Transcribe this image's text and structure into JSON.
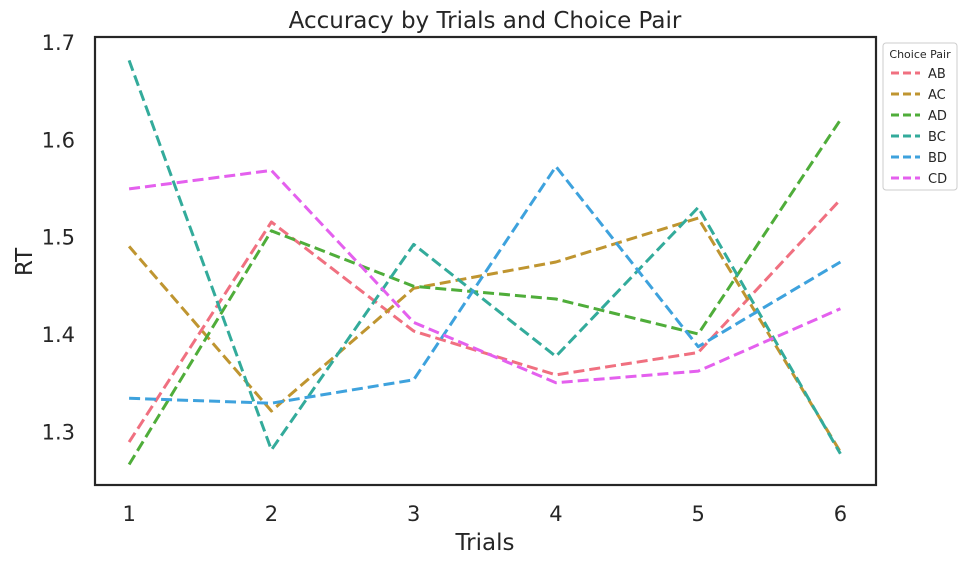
{
  "chart_data": {
    "type": "line",
    "title": "Accuracy by Trials and Choice Pair",
    "xlabel": "Trials",
    "ylabel": "RT",
    "x": [
      1,
      2,
      3,
      4,
      5,
      6
    ],
    "xlim": [
      0.76,
      6.25
    ],
    "ylim": [
      1.245,
      1.705
    ],
    "yticks": [
      1.3,
      1.4,
      1.5,
      1.6,
      1.7
    ],
    "ytick_labels": [
      "1.3",
      "1.4",
      "1.5",
      "1.6",
      "1.7"
    ],
    "xtick_labels": [
      "1",
      "2",
      "3",
      "4",
      "5",
      "6"
    ],
    "grid": false,
    "line_style": "dashed",
    "legend": {
      "title": "Choice Pair",
      "placement": "outside-top-right"
    },
    "series": [
      {
        "name": "AB",
        "color": "#f07080",
        "values": [
          1.289,
          1.515,
          1.403,
          1.358,
          1.381,
          1.538
        ]
      },
      {
        "name": "AC",
        "color": "#bf9530",
        "values": [
          1.49,
          1.321,
          1.447,
          1.474,
          1.519,
          1.279
        ]
      },
      {
        "name": "AD",
        "color": "#4fad3a",
        "values": [
          1.266,
          1.506,
          1.449,
          1.436,
          1.4,
          1.62
        ]
      },
      {
        "name": "BC",
        "color": "#33ab9b",
        "values": [
          1.681,
          1.281,
          1.492,
          1.377,
          1.53,
          1.277
        ]
      },
      {
        "name": "BD",
        "color": "#3ea2dd",
        "values": [
          1.334,
          1.329,
          1.353,
          1.572,
          1.387,
          1.474
        ]
      },
      {
        "name": "CD",
        "color": "#e460ee",
        "values": [
          1.549,
          1.568,
          1.412,
          1.35,
          1.362,
          1.426
        ]
      }
    ]
  }
}
